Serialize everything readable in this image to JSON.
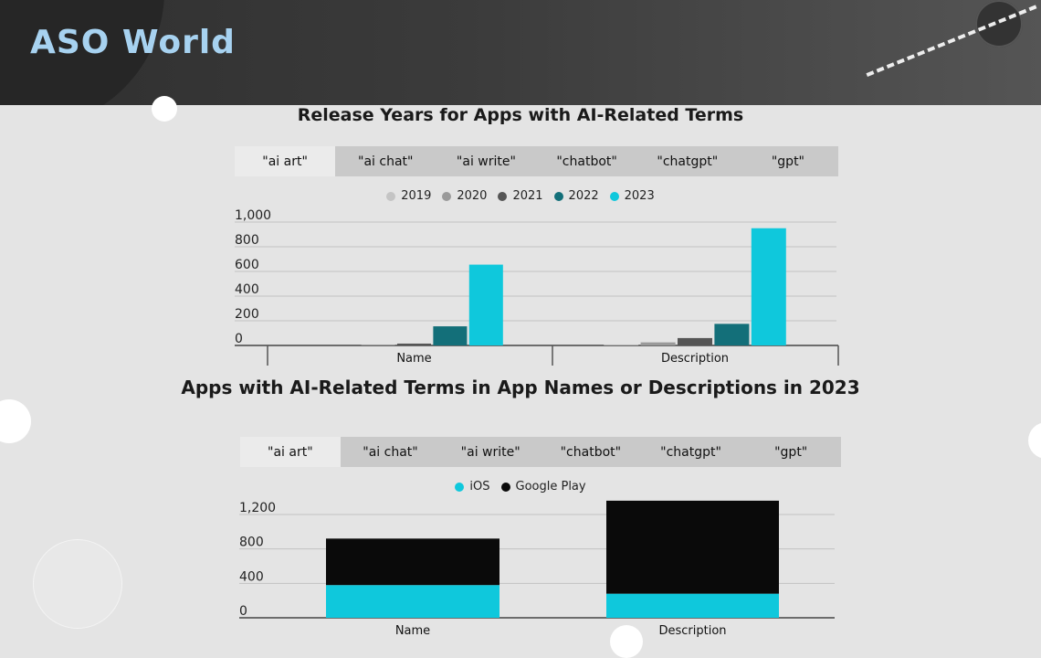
{
  "brand": {
    "logo_text": "ASO World"
  },
  "chart1": {
    "title": "Release Years for Apps with AI-Related Terms",
    "tabs": [
      "\"ai art\"",
      "\"ai chat\"",
      "\"ai write\"",
      "\"chatbot\"",
      "\"chatgpt\"",
      "\"gpt\""
    ],
    "active_tab": 0
  },
  "chart2": {
    "title": "Apps with AI-Related Terms in App Names or Descriptions in 2023",
    "tabs": [
      "\"ai art\"",
      "\"ai chat\"",
      "\"ai write\"",
      "\"chatbot\"",
      "\"chatgpt\"",
      "\"gpt\""
    ],
    "active_tab": 0
  },
  "chart_data": [
    {
      "type": "bar",
      "title": "Release Years for Apps with AI-Related Terms",
      "categories": [
        "Name",
        "Description"
      ],
      "series": [
        {
          "name": "2019",
          "color": "#c4c4c4",
          "values": [
            0,
            5
          ]
        },
        {
          "name": "2020",
          "color": "#9a9a9a",
          "values": [
            5,
            25
          ]
        },
        {
          "name": "2021",
          "color": "#555555",
          "values": [
            15,
            60
          ]
        },
        {
          "name": "2022",
          "color": "#136f79",
          "values": [
            155,
            175
          ]
        },
        {
          "name": "2023",
          "color": "#0fc8dc",
          "values": [
            655,
            950
          ]
        }
      ],
      "ylim": [
        0,
        1000
      ],
      "yticks": [
        0,
        200,
        400,
        600,
        800,
        1000
      ],
      "ytick_labels": [
        "0",
        "200",
        "400",
        "600",
        "800",
        "1,000"
      ],
      "grid": true,
      "legend": "top-center"
    },
    {
      "type": "bar",
      "stacked": true,
      "title": "Apps with AI-Related Terms in App Names or Descriptions in 2023",
      "categories": [
        "Name",
        "Description"
      ],
      "series": [
        {
          "name": "iOS",
          "color": "#0fc8dc",
          "values": [
            380,
            280
          ]
        },
        {
          "name": "Google Play",
          "color": "#0a0a0a",
          "values": [
            540,
            1080
          ]
        }
      ],
      "ylim": [
        0,
        1380
      ],
      "yticks": [
        0,
        400,
        800,
        1200
      ],
      "ytick_labels": [
        "0",
        "400",
        "800",
        "1,200"
      ],
      "grid": true,
      "legend": "top-center"
    }
  ]
}
